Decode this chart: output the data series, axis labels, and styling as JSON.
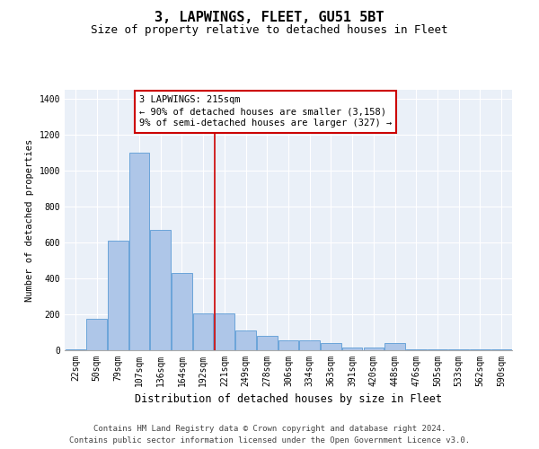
{
  "title": "3, LAPWINGS, FLEET, GU51 5BT",
  "subtitle": "Size of property relative to detached houses in Fleet",
  "xlabel": "Distribution of detached houses by size in Fleet",
  "ylabel": "Number of detached properties",
  "categories": [
    "22sqm",
    "50sqm",
    "79sqm",
    "107sqm",
    "136sqm",
    "164sqm",
    "192sqm",
    "221sqm",
    "249sqm",
    "278sqm",
    "306sqm",
    "334sqm",
    "363sqm",
    "391sqm",
    "420sqm",
    "448sqm",
    "476sqm",
    "505sqm",
    "533sqm",
    "562sqm",
    "590sqm"
  ],
  "values": [
    5,
    175,
    610,
    1100,
    670,
    430,
    205,
    205,
    110,
    80,
    55,
    55,
    40,
    15,
    15,
    40,
    5,
    5,
    5,
    5,
    5
  ],
  "bar_color": "#aec6e8",
  "bar_edge_color": "#5b9bd5",
  "vline_index": 7,
  "annotation_text": "3 LAPWINGS: 215sqm\n← 90% of detached houses are smaller (3,158)\n9% of semi-detached houses are larger (327) →",
  "annotation_box_color": "#ffffff",
  "annotation_box_edge": "#cc0000",
  "vline_color": "#cc0000",
  "ylim": [
    0,
    1450
  ],
  "yticks": [
    0,
    200,
    400,
    600,
    800,
    1000,
    1200,
    1400
  ],
  "background_color": "#eaf0f8",
  "grid_color": "#ffffff",
  "footer_line1": "Contains HM Land Registry data © Crown copyright and database right 2024.",
  "footer_line2": "Contains public sector information licensed under the Open Government Licence v3.0.",
  "title_fontsize": 11,
  "subtitle_fontsize": 9,
  "xlabel_fontsize": 8.5,
  "ylabel_fontsize": 7.5,
  "tick_fontsize": 7,
  "annotation_fontsize": 7.5,
  "footer_fontsize": 6.5
}
